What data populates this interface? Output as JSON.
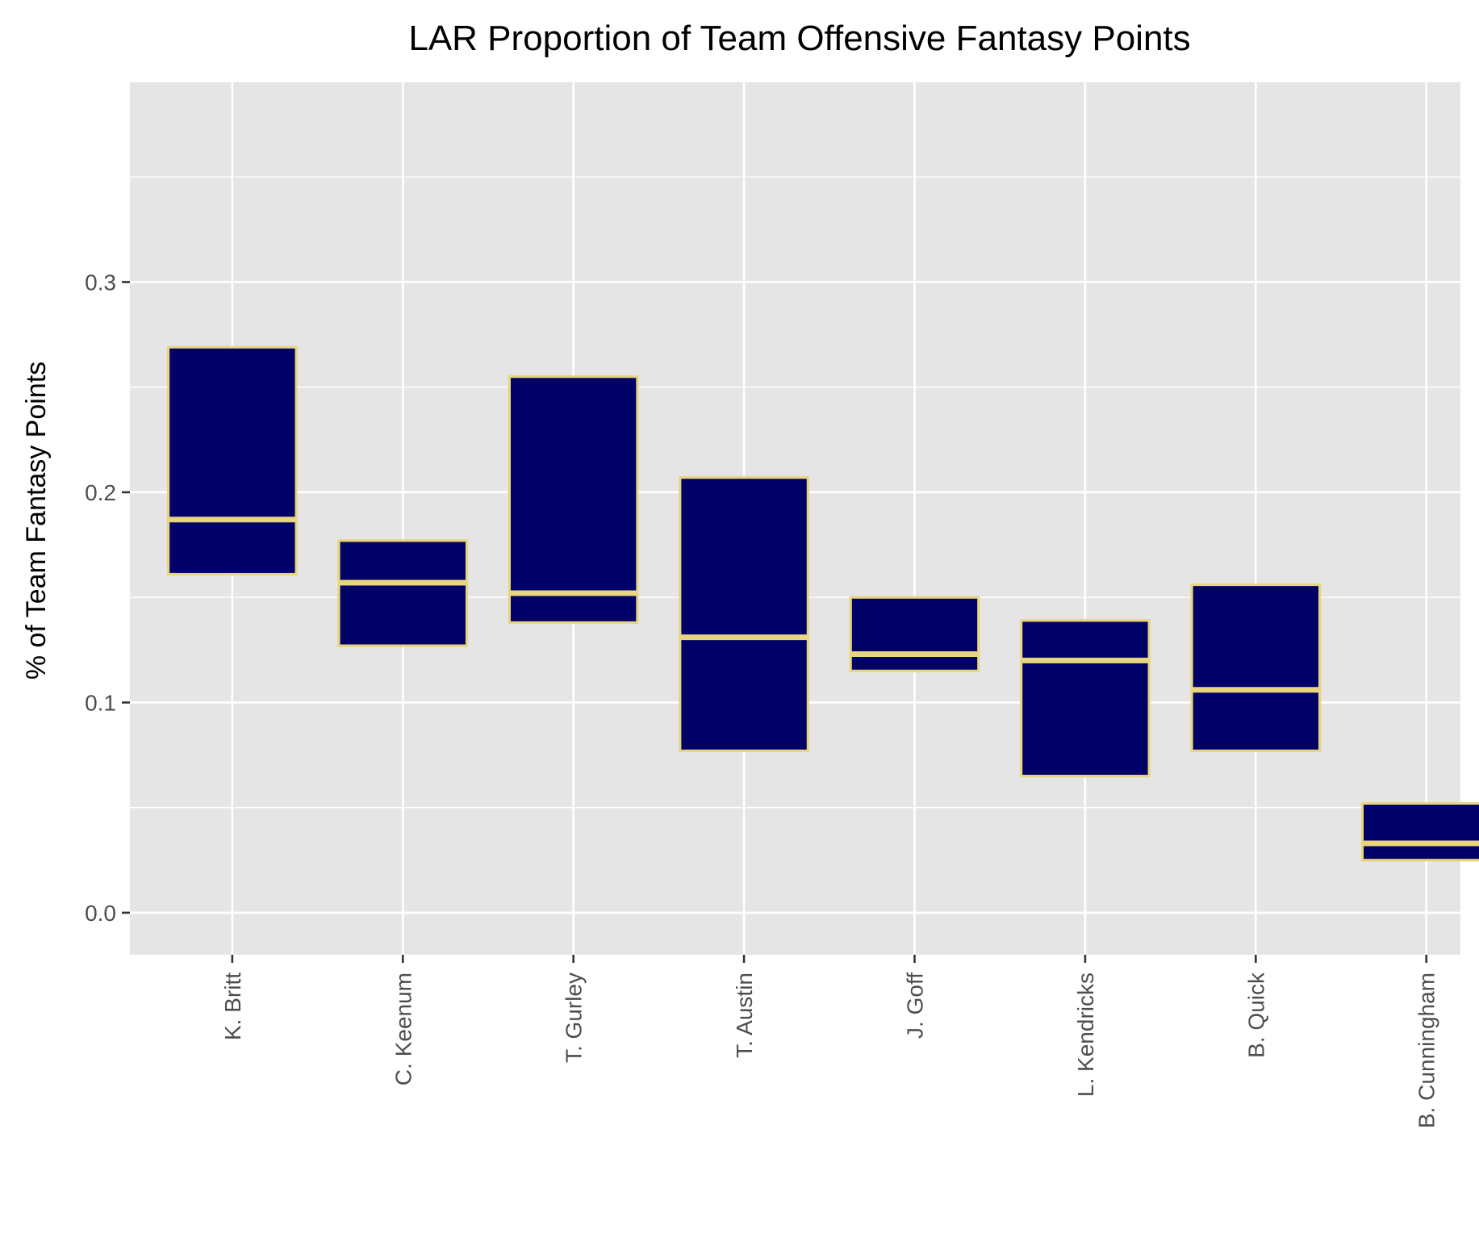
{
  "chart_data": {
    "type": "box",
    "title": "LAR Proportion of Team Offensive Fantasy Points",
    "xlabel": "",
    "ylabel": "% of Team Fantasy Points",
    "ylim": [
      -0.02,
      0.395
    ],
    "yticks": [
      0.0,
      0.1,
      0.2,
      0.3
    ],
    "ytick_labels": [
      "0.0",
      "0.1",
      "0.2",
      "0.3"
    ],
    "grid": true,
    "categories": [
      "K. Britt",
      "C. Keenum",
      "T. Gurley",
      "T. Austin",
      "J. Goff",
      "L. Kendricks",
      "B. Quick",
      "B. Cunningham"
    ],
    "boxes": [
      {
        "lower": 0.161,
        "median": 0.187,
        "upper": 0.269
      },
      {
        "lower": 0.127,
        "median": 0.157,
        "upper": 0.177
      },
      {
        "lower": 0.138,
        "median": 0.152,
        "upper": 0.255
      },
      {
        "lower": 0.077,
        "median": 0.131,
        "upper": 0.207
      },
      {
        "lower": 0.115,
        "median": 0.123,
        "upper": 0.15
      },
      {
        "lower": 0.065,
        "median": 0.12,
        "upper": 0.139
      },
      {
        "lower": 0.077,
        "median": 0.106,
        "upper": 0.156
      },
      {
        "lower": 0.025,
        "median": 0.033,
        "upper": 0.052
      }
    ],
    "colors": {
      "box_fill": "#000066",
      "box_stroke": "#E8D580",
      "panel_bg": "#E5E5E5",
      "grid": "#FFFFFF"
    }
  }
}
